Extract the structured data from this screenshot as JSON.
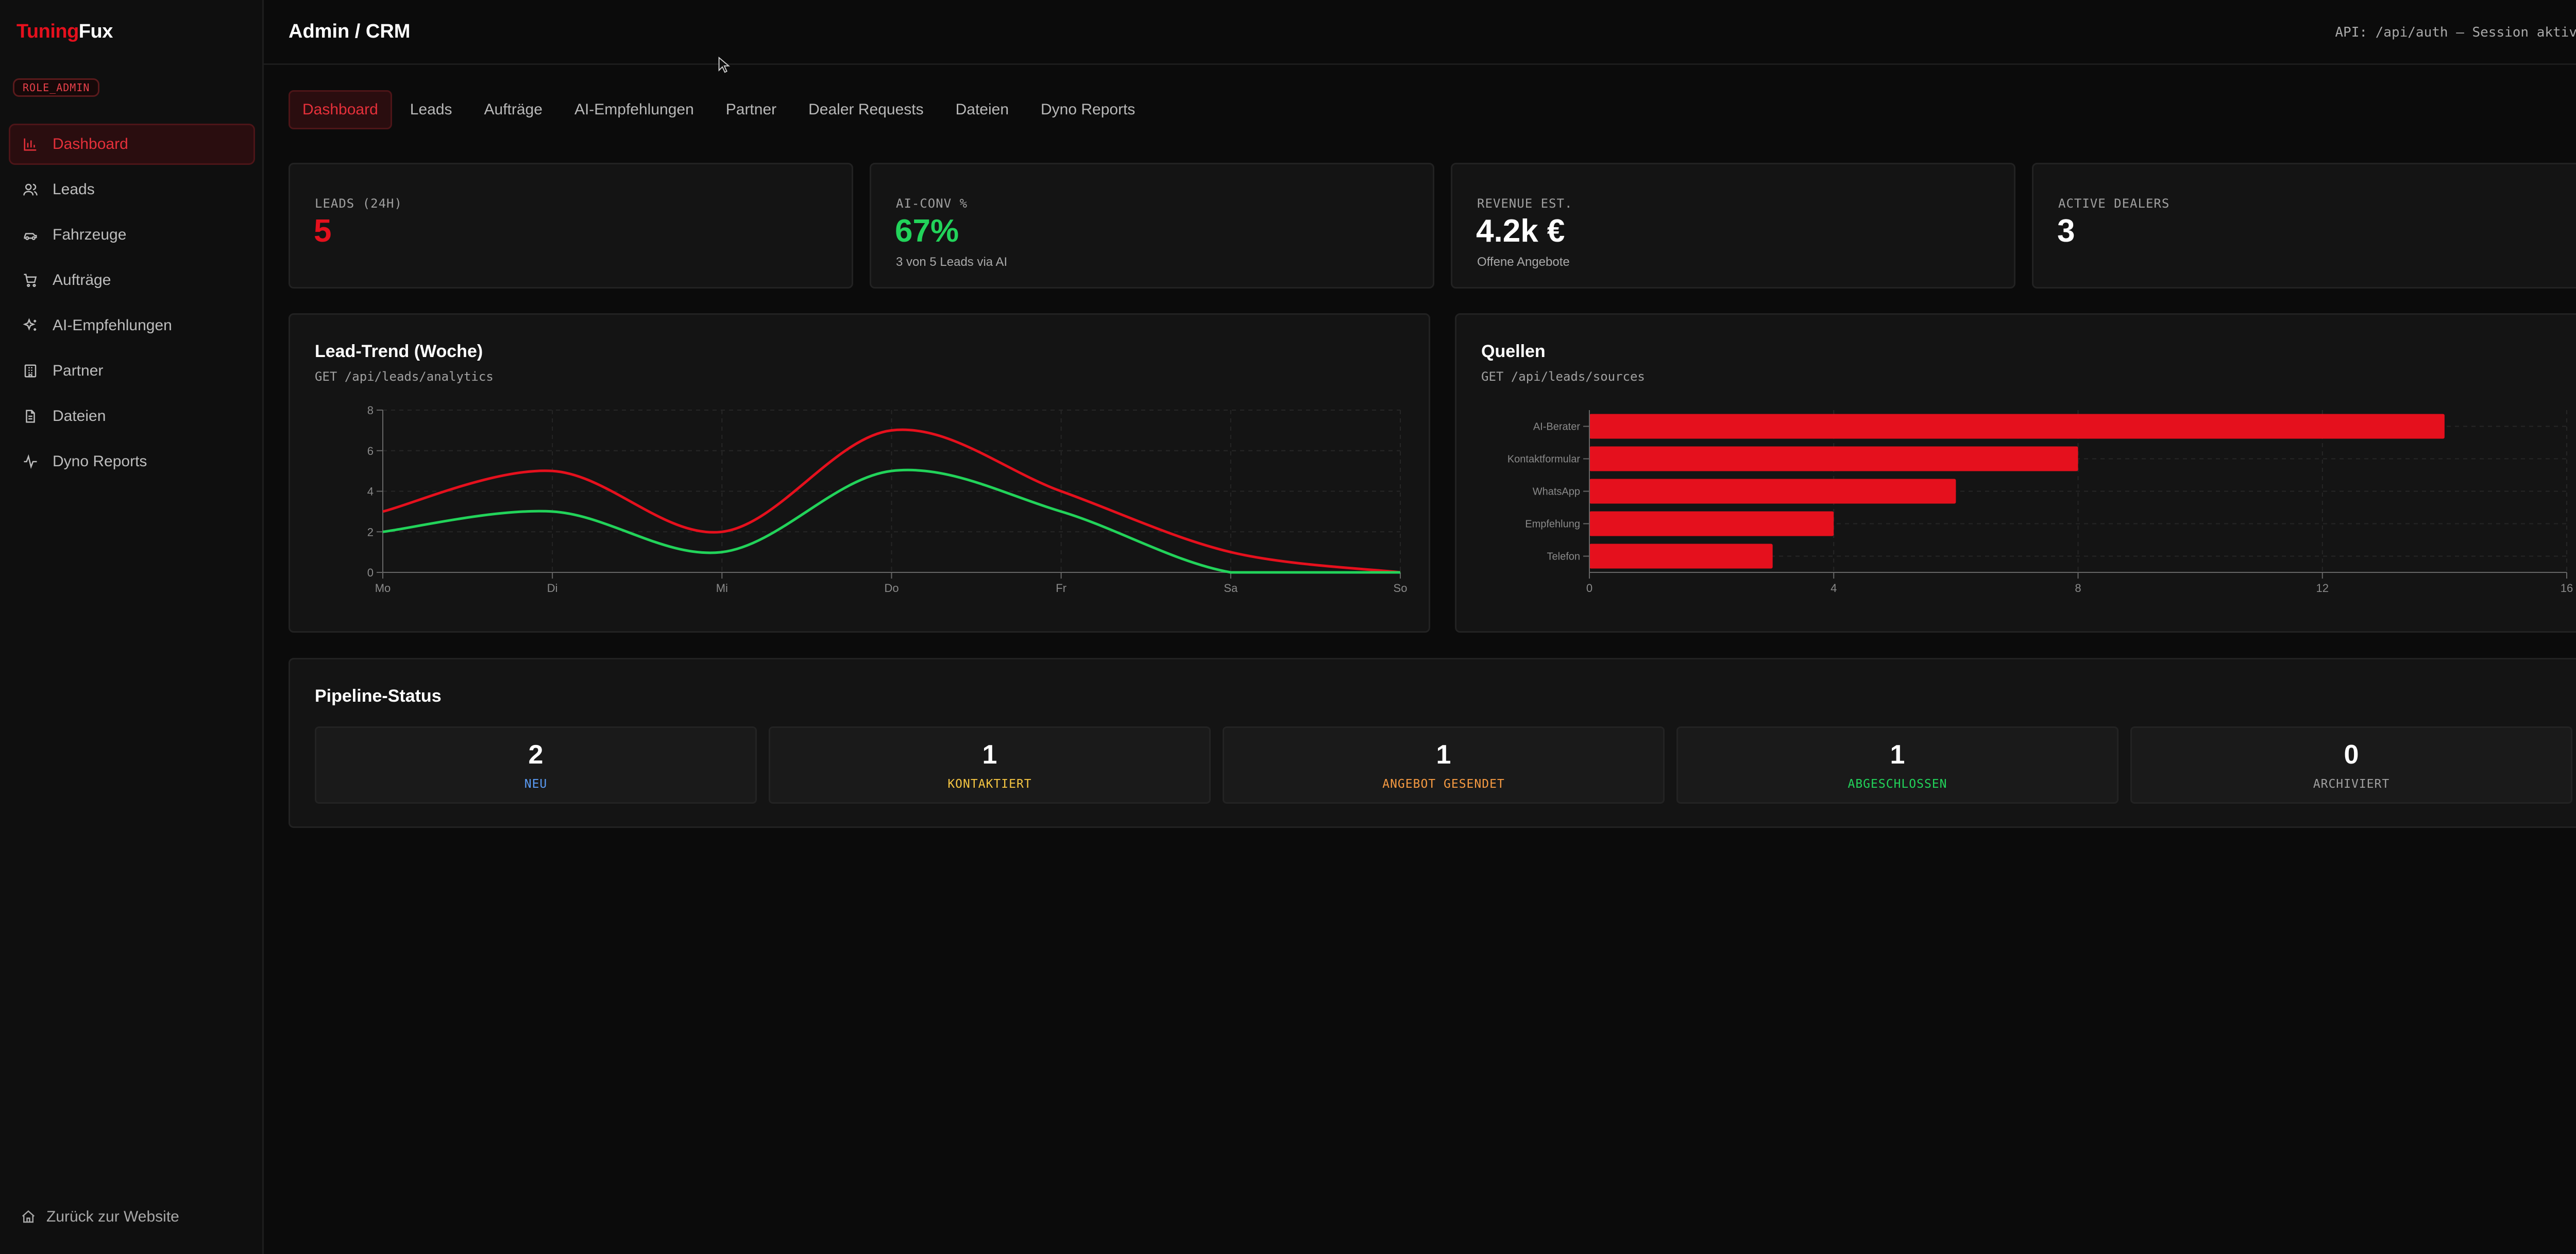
{
  "brand": {
    "part1": "Tuning",
    "part2": "Fux"
  },
  "role_badge": "ROLE_ADMIN",
  "sidebar": {
    "items": [
      {
        "label": "Dashboard",
        "icon": "bar-chart-icon",
        "active": true
      },
      {
        "label": "Leads",
        "icon": "users-icon"
      },
      {
        "label": "Fahrzeuge",
        "icon": "car-icon"
      },
      {
        "label": "Aufträge",
        "icon": "cart-icon"
      },
      {
        "label": "AI-Empfehlungen",
        "icon": "sparkles-icon"
      },
      {
        "label": "Partner",
        "icon": "building-icon"
      },
      {
        "label": "Dateien",
        "icon": "file-icon"
      },
      {
        "label": "Dyno Reports",
        "icon": "activity-icon"
      }
    ],
    "back_link": "Zurück zur Website"
  },
  "header": {
    "title": "Admin / CRM",
    "api_status": "API: /api/auth – Session aktiv"
  },
  "tabs": [
    "Dashboard",
    "Leads",
    "Aufträge",
    "AI-Empfehlungen",
    "Partner",
    "Dealer Requests",
    "Dateien",
    "Dyno Reports"
  ],
  "kpis": [
    {
      "label": "LEADS (24H)",
      "value": "5",
      "sub": "",
      "color": "#e5101d"
    },
    {
      "label": "AI-CONV %",
      "value": "67%",
      "sub": "3 von 5 Leads via AI",
      "color": "#22d35a"
    },
    {
      "label": "REVENUE EST.",
      "value": "4.2k €",
      "sub": "Offene Angebote",
      "color": "#ffffff"
    },
    {
      "label": "ACTIVE DEALERS",
      "value": "3",
      "sub": "",
      "color": "#ffffff"
    }
  ],
  "lead_trend": {
    "title": "Lead-Trend (Woche)",
    "subtitle": "GET /api/leads/analytics",
    "chart_data": {
      "type": "line",
      "x": [
        "Mo",
        "Di",
        "Mi",
        "Do",
        "Fr",
        "Sa",
        "So"
      ],
      "series": [
        {
          "values": [
            3,
            5,
            2,
            7,
            4,
            1,
            0
          ],
          "color": "#e5101d"
        },
        {
          "values": [
            2,
            3,
            1,
            5,
            3,
            0,
            0
          ],
          "color": "#22d35a"
        }
      ],
      "yticks": [
        0,
        2,
        4,
        6,
        8
      ],
      "ylim": [
        0,
        8
      ],
      "grid": true
    }
  },
  "sources": {
    "title": "Quellen",
    "subtitle": "GET /api/leads/sources",
    "chart_data": {
      "type": "bar",
      "orientation": "horizontal",
      "categories": [
        "AI-Berater",
        "Kontaktformular",
        "WhatsApp",
        "Empfehlung",
        "Telefon"
      ],
      "values": [
        14,
        8,
        6,
        4,
        3
      ],
      "xticks": [
        0,
        4,
        8,
        12,
        16
      ],
      "xlim": [
        0,
        16
      ],
      "color": "#e5101d",
      "grid": true
    }
  },
  "pipeline": {
    "title": "Pipeline-Status",
    "stages": [
      {
        "count": "2",
        "label": "NEU",
        "color": "#5b9cf5"
      },
      {
        "count": "1",
        "label": "KONTAKTIERT",
        "color": "#f5c542"
      },
      {
        "count": "1",
        "label": "ANGEBOT GESENDET",
        "color": "#f59a42"
      },
      {
        "count": "1",
        "label": "ABGESCHLOSSEN",
        "color": "#22d35a"
      },
      {
        "count": "0",
        "label": "ARCHIVIERT",
        "color": "#a0a0a0"
      }
    ]
  }
}
